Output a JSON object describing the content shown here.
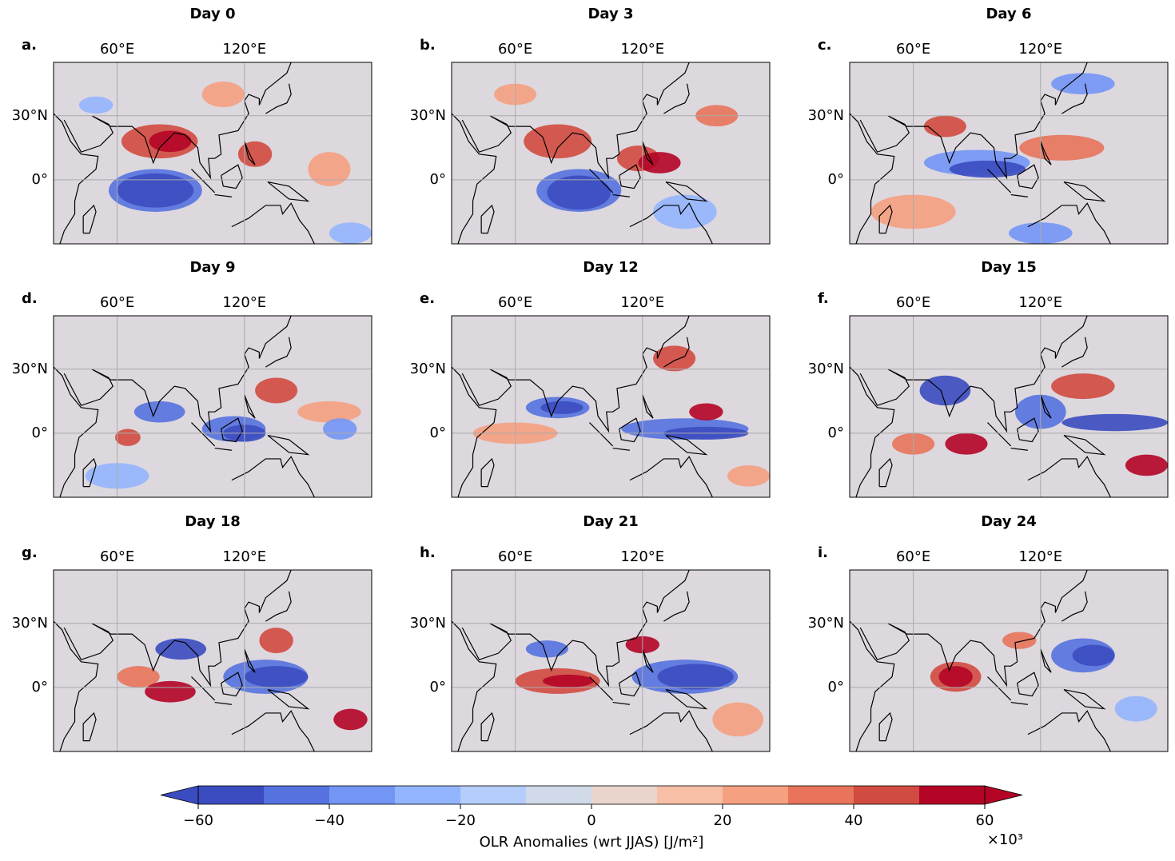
{
  "panels": [
    {
      "title": "Day 0",
      "letter": "a."
    },
    {
      "title": "Day 3",
      "letter": "b."
    },
    {
      "title": "Day 6",
      "letter": "c."
    },
    {
      "title": "Day 9",
      "letter": "d."
    },
    {
      "title": "Day 12",
      "letter": "e."
    },
    {
      "title": "Day 15",
      "letter": "f."
    },
    {
      "title": "Day 18",
      "letter": "g."
    },
    {
      "title": "Day 21",
      "letter": "h."
    },
    {
      "title": "Day 24",
      "letter": "i."
    }
  ],
  "map": {
    "xlim": [
      30,
      180
    ],
    "ylim": [
      -30,
      55
    ],
    "xticks": [
      {
        "value": 60,
        "label": "60°E"
      },
      {
        "value": 120,
        "label": "120°E"
      }
    ],
    "yticks": [
      {
        "value": 30,
        "label": "30°N"
      },
      {
        "value": 0,
        "label": "0°"
      }
    ],
    "grid": true
  },
  "colorbar": {
    "label": "OLR Anomalies (wrt JJAS) [J/m²]",
    "offset": "×10³",
    "levels": [
      -60,
      -50,
      -40,
      -30,
      -20,
      -10,
      0,
      10,
      20,
      30,
      40,
      50,
      60
    ],
    "colors": [
      "#3b4cc0",
      "#5572df",
      "#7396f5",
      "#93b5fe",
      "#b5cdfa",
      "#d1dae9",
      "#e9d5cb",
      "#f6bfa6",
      "#f5a081",
      "#e7745b",
      "#d24b40",
      "#b40426"
    ],
    "extend": "both",
    "ticks": [
      {
        "value": -60,
        "label": "−60"
      },
      {
        "value": -40,
        "label": "−40"
      },
      {
        "value": -20,
        "label": "−20"
      },
      0,
      20,
      40,
      60
    ]
  }
}
